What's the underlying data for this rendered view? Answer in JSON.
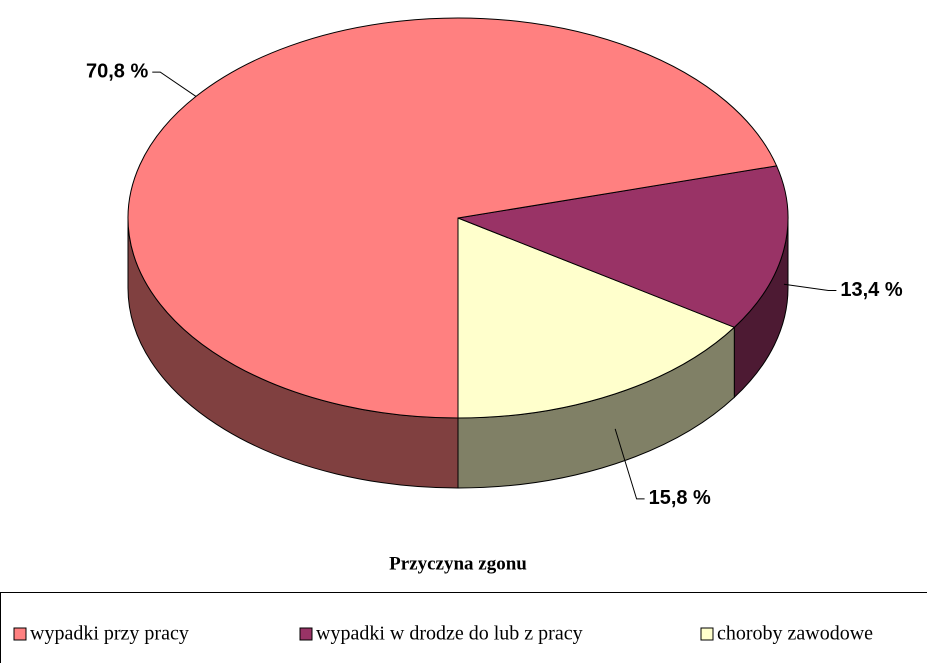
{
  "chart_data": {
    "type": "pie3d",
    "xlabel": "Przyczyna zgonu",
    "categories": [
      "wypadki przy pracy",
      "wypadki w drodze do lub z pracy",
      "choroby zawodowe"
    ],
    "values": [
      70.8,
      13.4,
      15.8
    ],
    "value_labels": [
      "70,8 %",
      "13,4 %",
      "15,8 %"
    ],
    "colors": [
      "#ff8080",
      "#993366",
      "#ffffcc"
    ],
    "legend": "bottom"
  }
}
